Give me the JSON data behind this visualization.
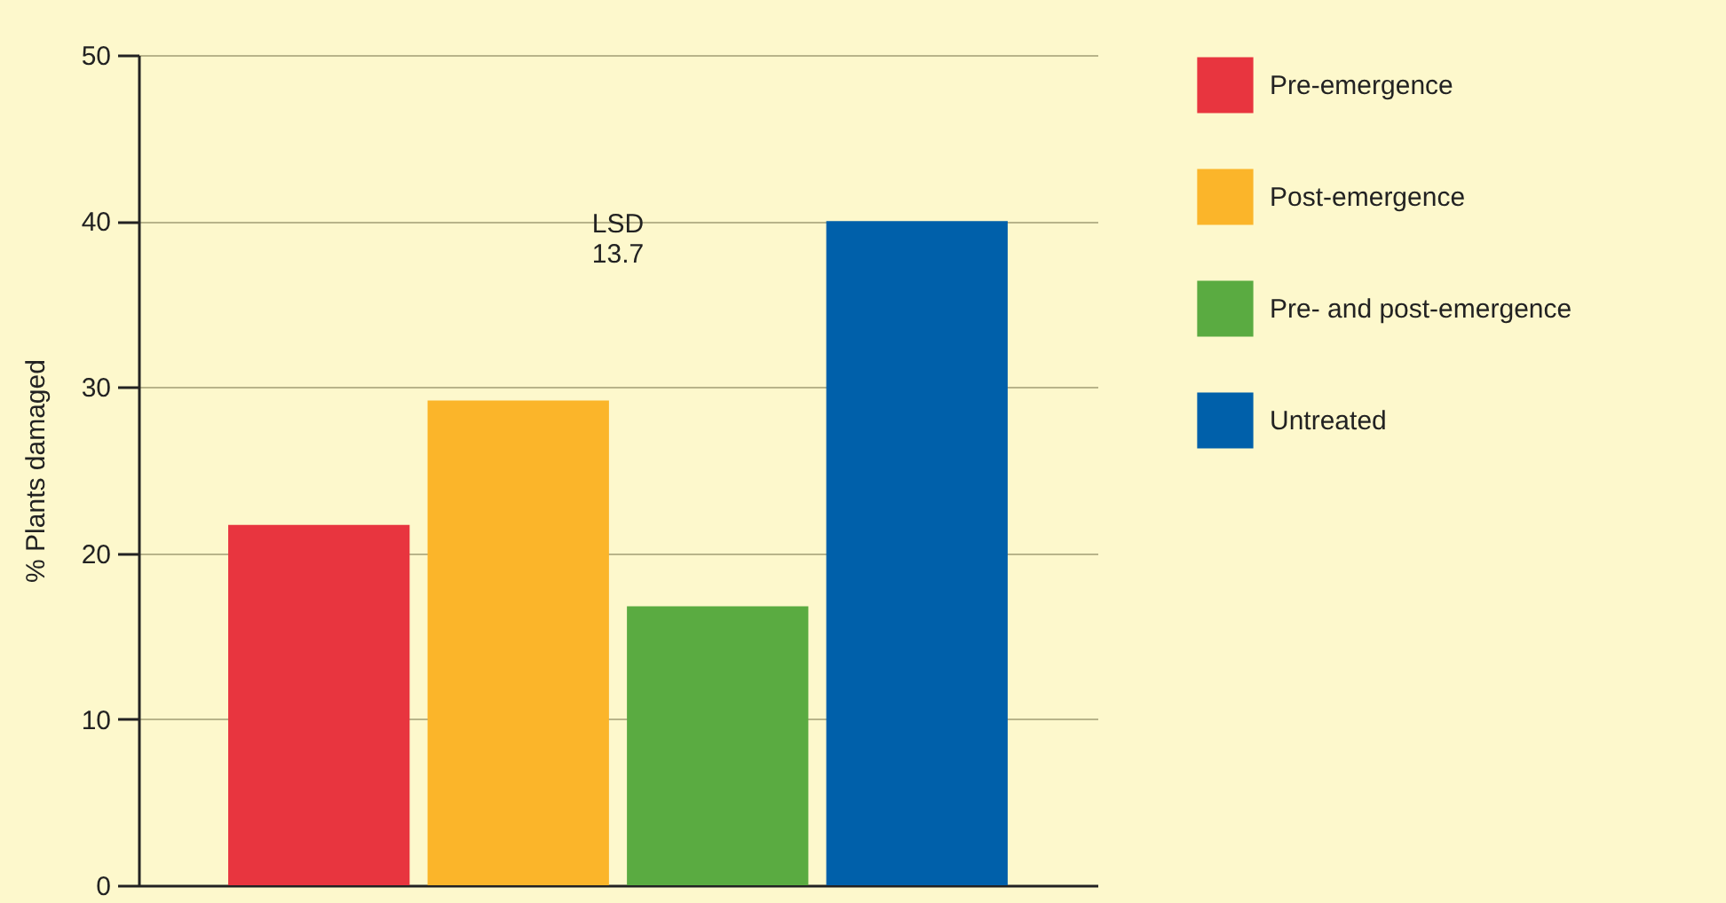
{
  "chart_data": {
    "type": "bar",
    "ylabel": "% Plants damaged",
    "categories": [
      null,
      null,
      null,
      null
    ],
    "series": [
      {
        "name": "Pre-emergence",
        "color": "#e8353f",
        "values": [
          21.7,
          null,
          null,
          null
        ]
      },
      {
        "name": "Post-emergence",
        "color": "#fbb52a",
        "values": [
          null,
          29.2,
          null,
          null
        ]
      },
      {
        "name": "Pre- and post-emergence",
        "color": "#5aab41",
        "values": [
          null,
          null,
          16.8,
          null
        ]
      },
      {
        "name": "Untreated",
        "color": "#0060aa",
        "values": [
          null,
          null,
          null,
          40
        ]
      }
    ],
    "ylim": [
      0,
      50
    ],
    "yticks": [
      0,
      10,
      20,
      30,
      40,
      50
    ],
    "grid": "y",
    "legend": "right",
    "annotations": [
      "LSD 13.7"
    ]
  }
}
